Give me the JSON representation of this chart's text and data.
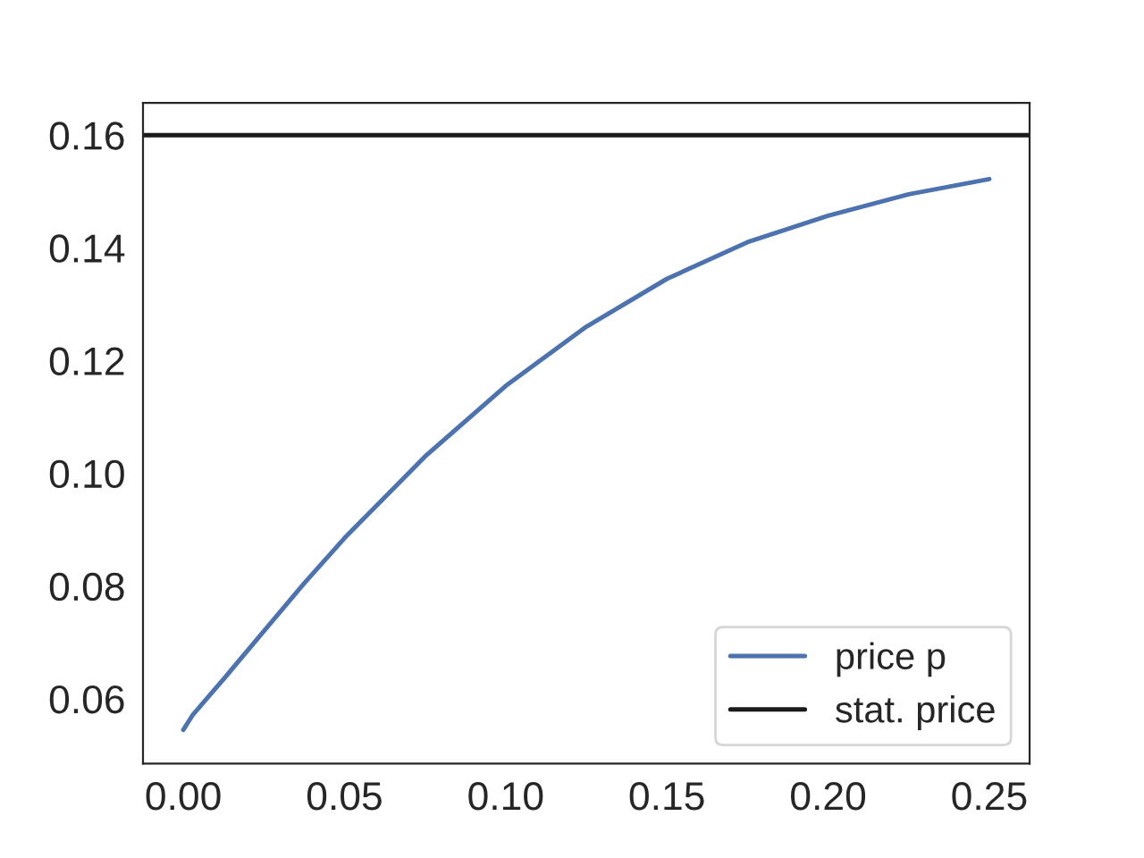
{
  "chart_data": {
    "type": "line",
    "x": [
      0,
      0.003,
      0.0125,
      0.025,
      0.0375,
      0.05,
      0.075,
      0.1,
      0.125,
      0.15,
      0.175,
      0.2,
      0.225,
      0.25
    ],
    "series": [
      {
        "name": "price p",
        "color": "#4c72b0",
        "values": [
          0.0545,
          0.0572,
          0.0635,
          0.072,
          0.0805,
          0.0885,
          0.103,
          0.1155,
          0.126,
          0.1345,
          0.141,
          0.1457,
          0.1495,
          0.1522
        ]
      }
    ],
    "ref_lines": [
      {
        "axis": "y",
        "value": 0.16,
        "label": "stat. price",
        "color": "#1a1a1a"
      }
    ],
    "xlim": [
      -0.0125,
      0.2625
    ],
    "ylim": [
      0.0485,
      0.1657
    ],
    "xticks": [
      {
        "value": 0,
        "label": "0.00"
      },
      0.05,
      {
        "value": 0.1,
        "label": "0.10"
      },
      0.15,
      {
        "value": 0.2,
        "label": "0.20"
      },
      0.25
    ],
    "yticks": [
      0.06,
      0.08,
      {
        "value": 0.1,
        "label": "0.10"
      },
      0.12,
      0.14,
      0.16
    ],
    "legend": "bottom right",
    "grid": false,
    "line_style": "solid",
    "marker": "none"
  }
}
